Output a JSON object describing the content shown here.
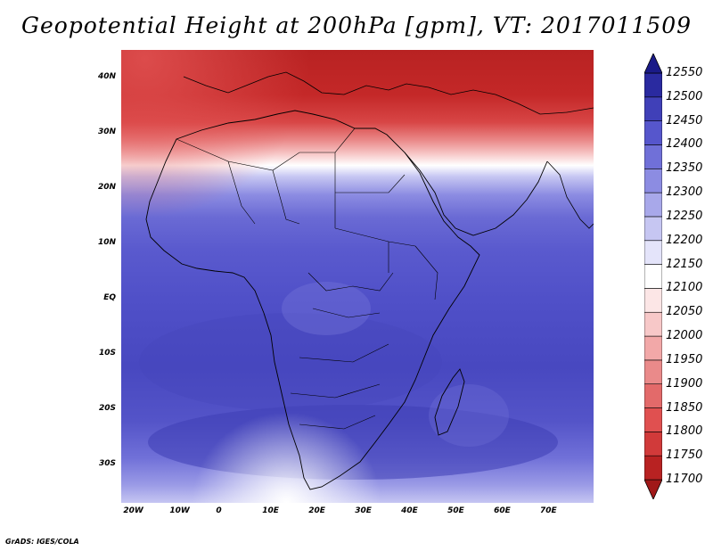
{
  "title": "Geopotential Height at 200hPa [gpm], VT: 2017011509",
  "credit": "GrADS: IGES/COLA",
  "map": {
    "lat_labels": [
      "40N",
      "30N",
      "20N",
      "10N",
      "EQ",
      "10S",
      "20S",
      "30S"
    ],
    "lat_values": [
      40,
      30,
      20,
      10,
      0,
      -10,
      -20,
      -30
    ],
    "lon_labels": [
      "20W",
      "10W",
      "0",
      "10E",
      "20E",
      "30E",
      "40E",
      "50E",
      "60E",
      "70E"
    ],
    "lon_values": [
      -20,
      -10,
      0,
      10,
      20,
      30,
      40,
      50,
      60,
      70
    ],
    "lon_range": [
      -22,
      80
    ],
    "lat_range": [
      -37,
      45
    ]
  },
  "colorbar": {
    "levels": [
      11700,
      11750,
      11800,
      11850,
      11900,
      11950,
      12000,
      12050,
      12100,
      12150,
      12200,
      12250,
      12300,
      12350,
      12400,
      12450,
      12500,
      12550
    ],
    "labels": [
      "11700",
      "11750",
      "11800",
      "11850",
      "11900",
      "11950",
      "12000",
      "12050",
      "12100",
      "12150",
      "12200",
      "12250",
      "12300",
      "12350",
      "12400",
      "12450",
      "12500",
      "12550"
    ],
    "colors": [
      "#a01818",
      "#b82222",
      "#d13a3a",
      "#e05050",
      "#e36a6a",
      "#ea8a8a",
      "#f2a8a8",
      "#f7c8c8",
      "#fce6e6",
      "#ffffff",
      "#e4e4fa",
      "#c6c6f2",
      "#a8a8ea",
      "#8c8ce2",
      "#7070d8",
      "#5656cc",
      "#4040b8",
      "#2a2aa0",
      "#1a1a88"
    ]
  }
}
